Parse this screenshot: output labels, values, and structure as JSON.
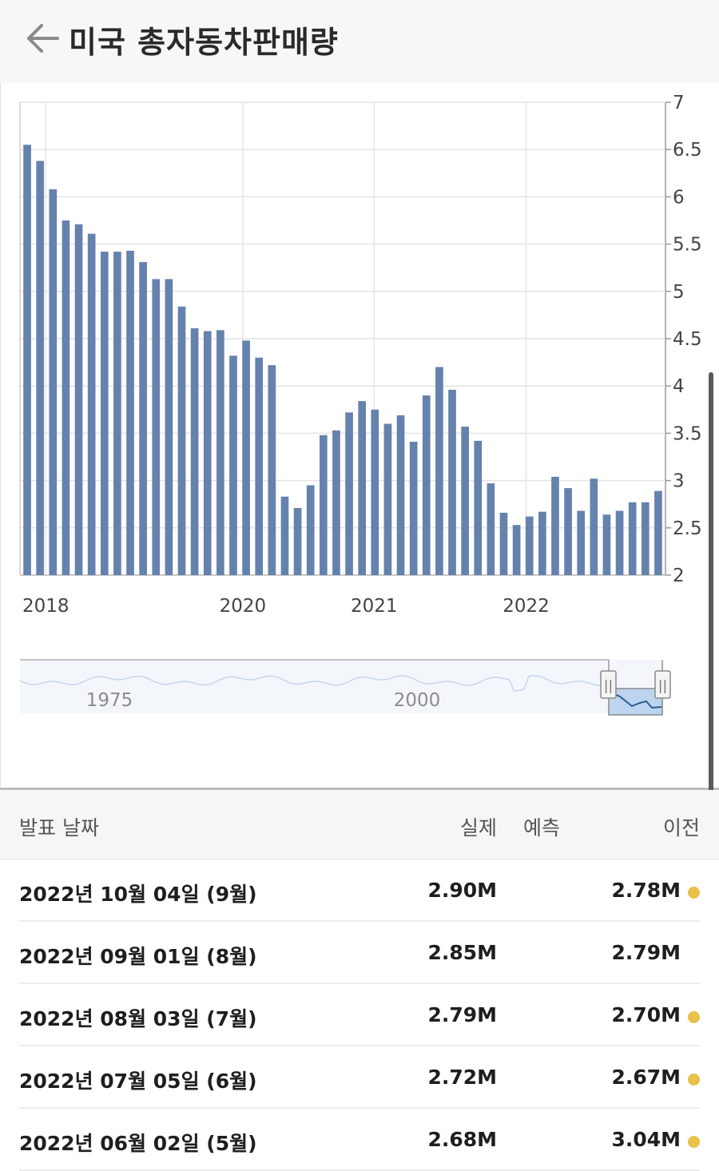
{
  "header": {
    "title": "미국 총자동차판매량",
    "back_icon": "arrow-left-icon"
  },
  "chart_data": {
    "type": "bar",
    "ylim": [
      2,
      7
    ],
    "yticks": [
      "7",
      "6.5",
      "6",
      "5.5",
      "5",
      "4.5",
      "4",
      "3.5",
      "3",
      "2.5",
      "2"
    ],
    "xticks": [
      {
        "label": "2018",
        "index": 2
      },
      {
        "label": "2020",
        "index": 17.3
      },
      {
        "label": "2021",
        "index": 27.5
      },
      {
        "label": "2022",
        "index": 39.3
      }
    ],
    "values": [
      6.55,
      6.38,
      6.08,
      5.75,
      5.71,
      5.61,
      5.42,
      5.42,
      5.43,
      5.31,
      5.13,
      5.13,
      4.84,
      4.61,
      4.58,
      4.59,
      4.32,
      4.48,
      4.3,
      4.22,
      2.83,
      2.71,
      2.95,
      3.48,
      3.53,
      3.72,
      3.84,
      3.75,
      3.6,
      3.69,
      3.41,
      3.9,
      4.2,
      3.96,
      3.57,
      3.42,
      2.97,
      2.66,
      2.53,
      2.62,
      2.67,
      3.04,
      2.92,
      2.68,
      3.02,
      2.64,
      2.68,
      2.77,
      2.77,
      2.89
    ],
    "bar_color": "#6582ad",
    "grid": true,
    "navigator": {
      "labels": [
        "1975",
        "2000"
      ],
      "handle_left": "||",
      "handle_right": "||"
    }
  },
  "table": {
    "headers": {
      "date": "발표 날짜",
      "actual": "실제",
      "forecast": "예측",
      "previous": "이전"
    },
    "rows": [
      {
        "date": "2022년 10월 04일 (9월)",
        "actual": "2.90M",
        "forecast": "",
        "previous": "2.78M",
        "dot": "#e8c04a"
      },
      {
        "date": "2022년 09월 01일 (8월)",
        "actual": "2.85M",
        "forecast": "",
        "previous": "2.79M",
        "dot": ""
      },
      {
        "date": "2022년 08월 03일 (7월)",
        "actual": "2.79M",
        "forecast": "",
        "previous": "2.70M",
        "dot": "#e8c04a"
      },
      {
        "date": "2022년 07월 05일 (6월)",
        "actual": "2.72M",
        "forecast": "",
        "previous": "2.67M",
        "dot": "#e8c04a"
      },
      {
        "date": "2022년 06월 02일 (5월)",
        "actual": "2.68M",
        "forecast": "",
        "previous": "3.04M",
        "dot": "#e8c04a"
      }
    ]
  }
}
